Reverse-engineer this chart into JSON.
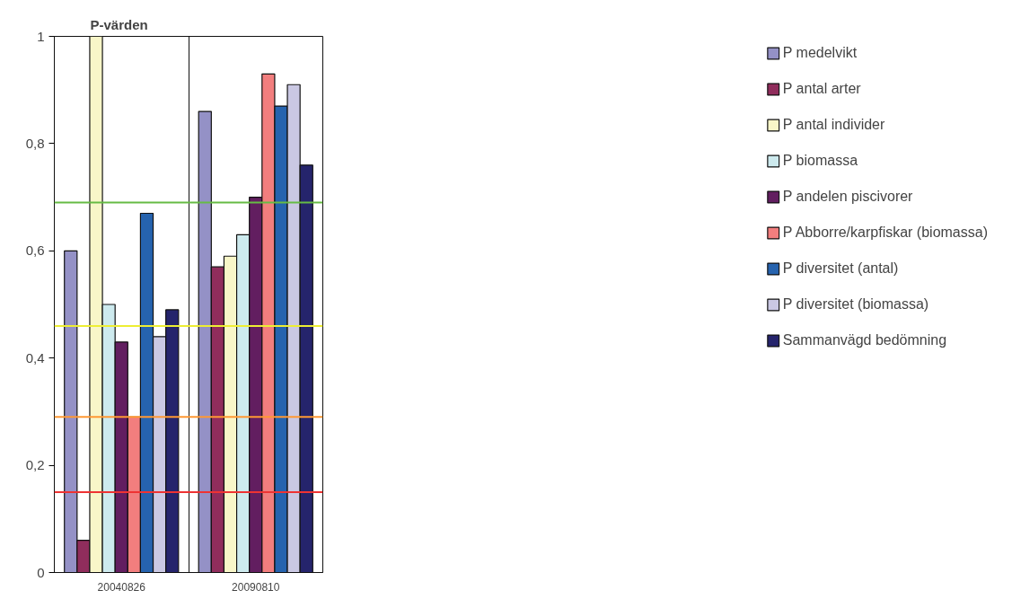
{
  "chart_data": {
    "type": "bar",
    "title": "P-värden",
    "categories": [
      "20040826",
      "20090810"
    ],
    "series": [
      {
        "name": "P medelvikt",
        "color": "#9491c6",
        "values": [
          0.6,
          0.86
        ]
      },
      {
        "name": "P antal arter",
        "color": "#902d5c",
        "values": [
          0.06,
          0.57
        ]
      },
      {
        "name": "P antal individer",
        "color": "#f8f6c8",
        "values": [
          1.0,
          0.59
        ]
      },
      {
        "name": "P biomassa",
        "color": "#cdeaee",
        "values": [
          0.5,
          0.63
        ]
      },
      {
        "name": "P andelen piscivorer",
        "color": "#621e60",
        "values": [
          0.43,
          0.7
        ]
      },
      {
        "name": "P Abborre/karpfiskar (biomassa)",
        "color": "#f27e7e",
        "values": [
          0.29,
          0.93
        ]
      },
      {
        "name": "P diversitet (antal)",
        "color": "#2663ae",
        "values": [
          0.67,
          0.87
        ]
      },
      {
        "name": "P diversitet (biomassa)",
        "color": "#cac8e3",
        "values": [
          0.44,
          0.91
        ]
      },
      {
        "name": "Sammanvägd bedömning",
        "color": "#25246c",
        "values": [
          0.49,
          0.76
        ]
      }
    ],
    "ylim": [
      0,
      1
    ],
    "yticks": [
      0,
      {
        "value": 0.2,
        "label": "0,2"
      },
      {
        "value": 0.4,
        "label": "0,4"
      },
      {
        "value": 0.6,
        "label": "0,6"
      },
      {
        "value": 0.8,
        "label": "0,8"
      },
      1
    ],
    "ref_lines": [
      {
        "axis": "y",
        "value": 0.69,
        "color": "#66bb44"
      },
      {
        "axis": "y",
        "value": 0.46,
        "color": "#eeee33"
      },
      {
        "axis": "y",
        "value": 0.29,
        "color": "#ff9933"
      },
      {
        "axis": "y",
        "value": 0.15,
        "color": "#ee3333"
      }
    ],
    "grid": "x",
    "legend": "right"
  }
}
